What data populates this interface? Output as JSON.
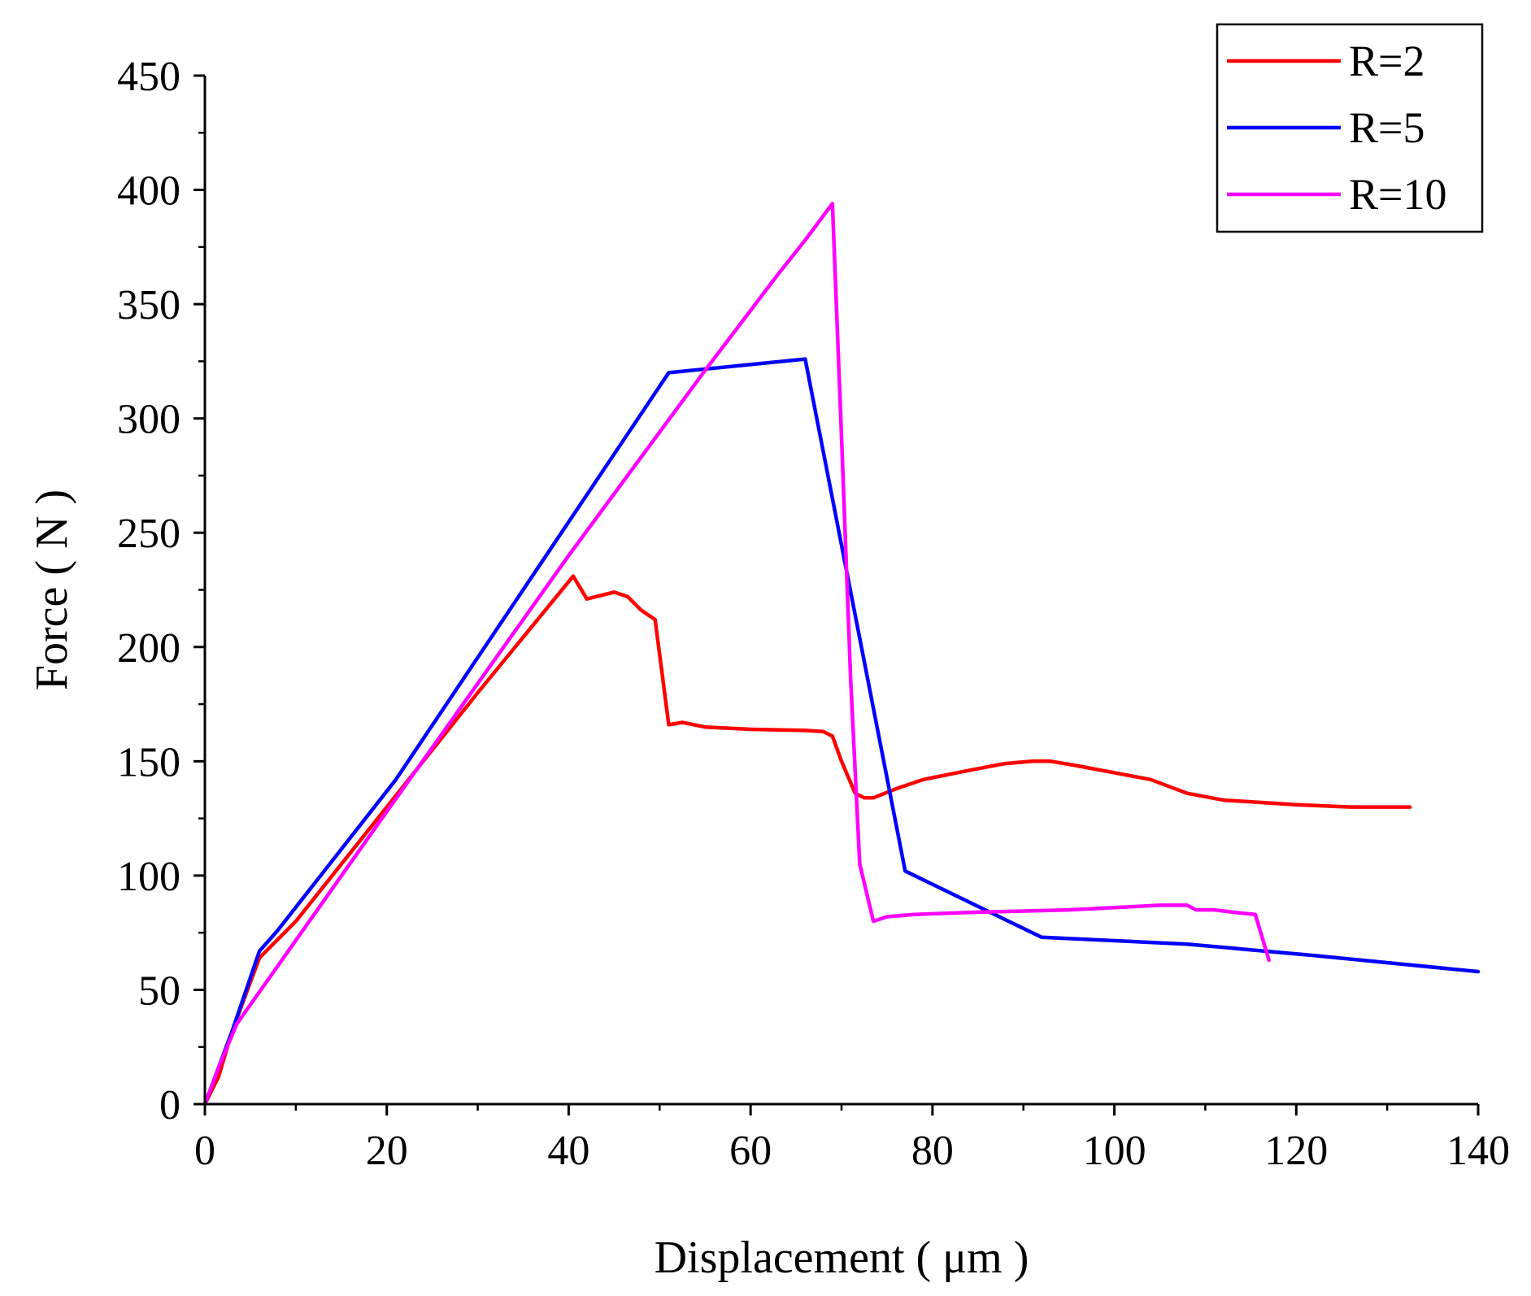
{
  "chart_data": {
    "type": "line",
    "title": "",
    "xlabel": "Displacement ( μm )",
    "ylabel": "Force ( N )",
    "xlim": [
      0,
      140
    ],
    "ylim": [
      0,
      450
    ],
    "xticks": [
      0,
      20,
      40,
      60,
      80,
      100,
      120,
      140
    ],
    "yticks": [
      0,
      50,
      100,
      150,
      200,
      250,
      300,
      350,
      400,
      450
    ],
    "grid": false,
    "legend_position": "top-right",
    "series": [
      {
        "name": "R=2",
        "color": "#ff0000",
        "points": [
          [
            0,
            0
          ],
          [
            1.5,
            12
          ],
          [
            3,
            32
          ],
          [
            6,
            64
          ],
          [
            10,
            80
          ],
          [
            20,
            130
          ],
          [
            30,
            180
          ],
          [
            40.5,
            231
          ],
          [
            42,
            221
          ],
          [
            45,
            224
          ],
          [
            46.5,
            222
          ],
          [
            48,
            216
          ],
          [
            49.5,
            212
          ],
          [
            51,
            166
          ],
          [
            52.5,
            167
          ],
          [
            55,
            165
          ],
          [
            60,
            164
          ],
          [
            66,
            163.5
          ],
          [
            68,
            163
          ],
          [
            69,
            161
          ],
          [
            70,
            150
          ],
          [
            71.5,
            136
          ],
          [
            72.5,
            134
          ],
          [
            73.5,
            134
          ],
          [
            76,
            138
          ],
          [
            79,
            142
          ],
          [
            84,
            146
          ],
          [
            88,
            149
          ],
          [
            91,
            150
          ],
          [
            93,
            150
          ],
          [
            96,
            148
          ],
          [
            100,
            145
          ],
          [
            104,
            142
          ],
          [
            108,
            136
          ],
          [
            112,
            133
          ],
          [
            120,
            131
          ],
          [
            126,
            130
          ],
          [
            132.5,
            130
          ]
        ]
      },
      {
        "name": "R=5",
        "color": "#0000ff",
        "points": [
          [
            0,
            0
          ],
          [
            3,
            32
          ],
          [
            6,
            67
          ],
          [
            8,
            76
          ],
          [
            21,
            142
          ],
          [
            51,
            320
          ],
          [
            66,
            326
          ],
          [
            77,
            102
          ],
          [
            92,
            73
          ],
          [
            108,
            70
          ],
          [
            122,
            65
          ],
          [
            140,
            58
          ]
        ]
      },
      {
        "name": "R=10",
        "color": "#ff00ff",
        "points": [
          [
            0,
            0
          ],
          [
            1.5,
            16
          ],
          [
            3.5,
            35
          ],
          [
            20,
            128
          ],
          [
            40,
            240
          ],
          [
            55,
            321
          ],
          [
            63,
            363
          ],
          [
            66,
            378
          ],
          [
            69,
            394
          ],
          [
            70,
            292
          ],
          [
            71,
            186
          ],
          [
            72,
            105
          ],
          [
            73.5,
            80
          ],
          [
            75,
            82
          ],
          [
            78,
            83
          ],
          [
            85,
            84
          ],
          [
            95,
            85
          ],
          [
            105,
            87
          ],
          [
            108,
            87
          ],
          [
            109,
            85
          ],
          [
            111,
            85
          ],
          [
            113,
            84
          ],
          [
            115.5,
            83
          ],
          [
            117,
            63
          ]
        ]
      }
    ]
  }
}
